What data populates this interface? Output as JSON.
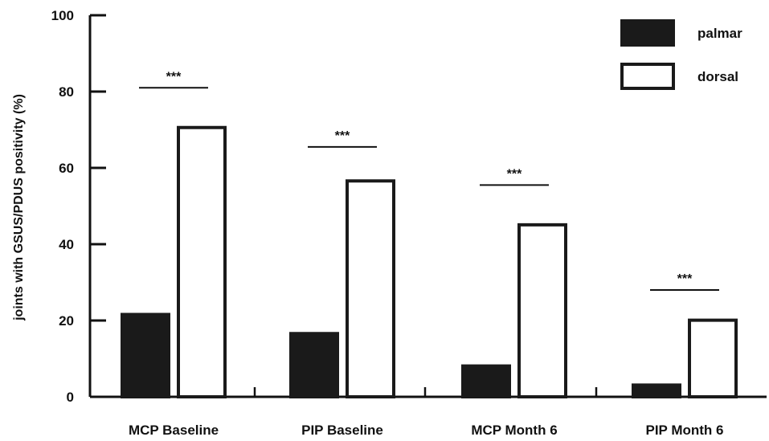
{
  "chart_data": {
    "type": "bar",
    "ylabel": "joints with GSUS/PDUS  positivity (%)",
    "ylim": [
      0,
      100
    ],
    "yticks": [
      0,
      20,
      40,
      60,
      80,
      100
    ],
    "categories": [
      "MCP Baseline",
      "PIP Baseline",
      "MCP Month 6",
      "PIP Month 6"
    ],
    "series": [
      {
        "name": "palmar",
        "values": [
          22,
          17,
          8.5,
          3.5
        ],
        "fill": "#1a1a1a",
        "stroke": "#1a1a1a"
      },
      {
        "name": "dorsal",
        "values": [
          71,
          57,
          45.5,
          20.5
        ],
        "fill": "#ffffff",
        "stroke": "#1a1a1a"
      }
    ],
    "significance": [
      {
        "category_index": 0,
        "label": "***",
        "y": 81
      },
      {
        "category_index": 1,
        "label": "***",
        "y": 65.5
      },
      {
        "category_index": 2,
        "label": "***",
        "y": 55.5
      },
      {
        "category_index": 3,
        "label": "***",
        "y": 28
      }
    ],
    "legend_position": "top-right",
    "grid": false
  }
}
